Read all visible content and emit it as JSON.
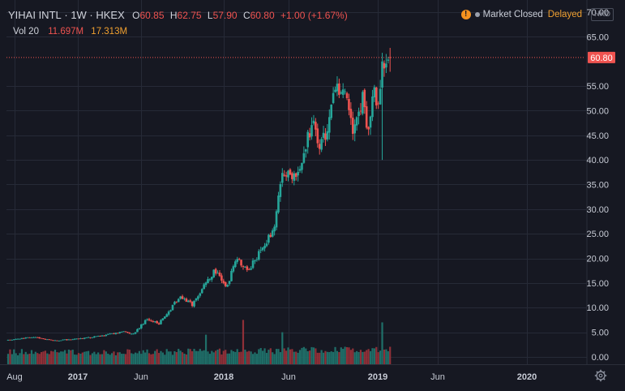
{
  "header": {
    "symbol": "YIHAI INTL",
    "interval": "1W",
    "exchange": "HKEX",
    "open_label": "O",
    "open_value": "60.85",
    "high_label": "H",
    "high_value": "62.75",
    "low_label": "L",
    "low_value": "57.90",
    "close_label": "C",
    "close_value": "60.80",
    "change": "+1.00 (+1.67%)"
  },
  "volume_legend": {
    "label": "Vol 20",
    "value": "11.697M",
    "ma_value": "17.313M"
  },
  "status": {
    "warning_icon": "!",
    "text": "Market Closed",
    "delayed": "Delayed"
  },
  "currency": "HKD",
  "last_price_label": "60.80",
  "colors": {
    "background": "#161822",
    "grid": "#262a37",
    "up": "#26a69a",
    "down": "#ef5350",
    "vol_up": "#1f6f69",
    "vol_down": "#8f3038",
    "last_price": "#ef5350",
    "axis_text": "#c8ccd6"
  },
  "chart_data": {
    "type": "candlestick",
    "interval": "1W",
    "x_ticks": [
      {
        "label": "Aug",
        "date": "2016-08-01",
        "year": false
      },
      {
        "label": "2017",
        "date": "2017-01-01",
        "year": true
      },
      {
        "label": "Jun",
        "date": "2017-06-01",
        "year": false
      },
      {
        "label": "2018",
        "date": "2018-01-01",
        "year": true
      },
      {
        "label": "Jun",
        "date": "2018-06-01",
        "year": false
      },
      {
        "label": "2019",
        "date": "2019-01-01",
        "year": true
      },
      {
        "label": "Jun",
        "date": "2019-06-01",
        "year": false
      },
      {
        "label": "2020",
        "date": "2020-01-01",
        "year": true
      }
    ],
    "y_ticks": [
      0,
      5,
      10,
      15,
      20,
      25,
      30,
      35,
      40,
      45,
      50,
      55,
      65,
      70
    ],
    "y_tick_labels": [
      "0.00",
      "5.00",
      "10.00",
      "15.00",
      "20.00",
      "25.00",
      "30.00",
      "35.00",
      "40.00",
      "45.00",
      "50.00",
      "55.00",
      "65.00",
      "70.00"
    ],
    "ylim": [
      -1.5,
      70.5
    ],
    "last_price": 60.8,
    "grid": true,
    "volume_overlay": true,
    "price_path": [
      [
        "2016-07-25",
        3.4
      ],
      [
        "2016-10-15",
        4.0
      ],
      [
        "2017-01-15",
        3.3
      ],
      [
        "2017-06-01",
        4.0
      ],
      [
        "2017-09-15",
        5.2
      ],
      [
        "2017-10-15",
        4.6
      ],
      [
        "2017-12-01",
        7.5
      ],
      [
        "2018-01-15",
        6.8
      ],
      [
        "2018-03-01",
        10.0
      ],
      [
        "2018-04-01",
        12.5
      ],
      [
        "2018-05-15",
        10.5
      ],
      [
        "2018-07-01",
        15.0
      ],
      [
        "2018-08-01",
        17.5
      ],
      [
        "2018-09-15",
        14.0
      ],
      [
        "2018-10-15",
        20.0
      ],
      [
        "2018-12-01",
        17.5
      ],
      [
        "2019-01-15",
        22.0
      ],
      [
        "2019-03-01",
        26.0
      ],
      [
        "2019-04-01",
        37.0
      ],
      [
        "2019-05-15",
        36.0
      ],
      [
        "2019-06-15",
        40.0
      ],
      [
        "2019-07-15",
        48.0
      ],
      [
        "2019-08-10",
        42.0
      ],
      [
        "2019-09-15",
        47.0
      ],
      [
        "2019-10-10",
        55.0
      ],
      [
        "2019-11-15",
        52.0
      ],
      [
        "2019-12-10",
        45.0
      ],
      [
        "2020-01-15",
        53.0
      ],
      [
        "2020-02-01",
        45.0
      ],
      [
        "2020-02-20",
        55.0
      ],
      [
        "2020-03-05",
        48.0
      ],
      [
        "2020-03-20",
        58.0
      ],
      [
        "2020-04-10",
        59.8
      ],
      [
        "2020-04-24",
        60.8
      ]
    ],
    "spikes": [
      {
        "date": "2020-03-20",
        "low": 40.0
      },
      {
        "date": "2020-04-24",
        "high": 62.75,
        "low": 57.9
      }
    ],
    "volume_spikes": [
      {
        "date": "2018-07-01",
        "volume": 4.5
      },
      {
        "date": "2018-11-15",
        "volume": 7.5
      },
      {
        "date": "2019-04-01",
        "volume": 5.0
      },
      {
        "date": "2020-03-20",
        "volume": 7.0
      }
    ]
  }
}
